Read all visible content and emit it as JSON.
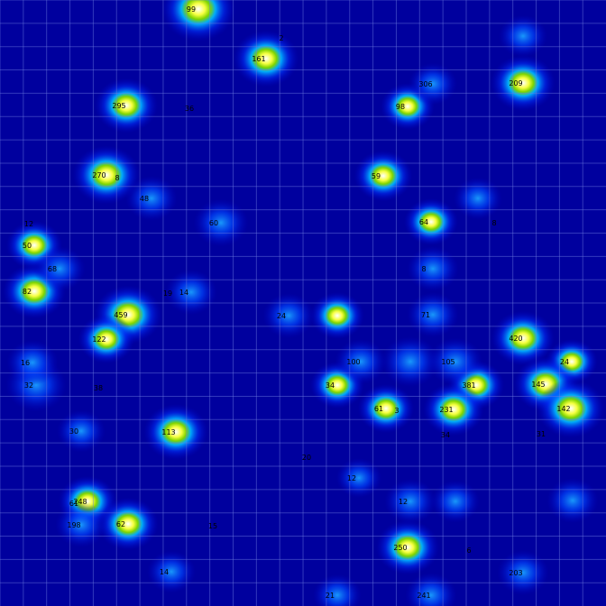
{
  "chart_data": {
    "type": "heatmap",
    "title": "",
    "xlabel": "",
    "ylabel": "",
    "xlim": [
      0,
      672
    ],
    "ylim": [
      0,
      672
    ],
    "grid": true,
    "grid_cell": 25.85,
    "colors": {
      "background": "#00009e",
      "grid": "#6f7fe0",
      "label": "#000000"
    },
    "hotspots": [
      {
        "x": 220,
        "y": 10,
        "label": "99",
        "intensity": 1.0
      },
      {
        "x": 295,
        "y": 65,
        "label": "161",
        "intensity": 0.8
      },
      {
        "x": 580,
        "y": 92,
        "label": "209",
        "intensity": 0.78
      },
      {
        "x": 140,
        "y": 117,
        "label": "295",
        "intensity": 0.75
      },
      {
        "x": 452,
        "y": 118,
        "label": "98",
        "intensity": 0.55
      },
      {
        "x": 118,
        "y": 194,
        "label": "270",
        "intensity": 0.85
      },
      {
        "x": 425,
        "y": 195,
        "label": "59",
        "intensity": 0.65
      },
      {
        "x": 478,
        "y": 246,
        "label": "64",
        "intensity": 0.55
      },
      {
        "x": 38,
        "y": 272,
        "label": "50",
        "intensity": 0.6
      },
      {
        "x": 38,
        "y": 323,
        "label": "82",
        "intensity": 0.75
      },
      {
        "x": 142,
        "y": 349,
        "label": "459",
        "intensity": 0.85
      },
      {
        "x": 374,
        "y": 350,
        "label": "",
        "intensity": 0.55
      },
      {
        "x": 118,
        "y": 376,
        "label": "122",
        "intensity": 0.6
      },
      {
        "x": 580,
        "y": 375,
        "label": "420",
        "intensity": 0.75
      },
      {
        "x": 634,
        "y": 401,
        "label": "24",
        "intensity": 0.5
      },
      {
        "x": 374,
        "y": 427,
        "label": "34",
        "intensity": 0.55
      },
      {
        "x": 528,
        "y": 427,
        "label": "381",
        "intensity": 0.6
      },
      {
        "x": 605,
        "y": 426,
        "label": "145",
        "intensity": 0.75
      },
      {
        "x": 633,
        "y": 453,
        "label": "142",
        "intensity": 0.85
      },
      {
        "x": 428,
        "y": 453,
        "label": "61",
        "intensity": 0.6
      },
      {
        "x": 503,
        "y": 454,
        "label": "231",
        "intensity": 0.7
      },
      {
        "x": 195,
        "y": 479,
        "label": "113",
        "intensity": 0.78
      },
      {
        "x": 97,
        "y": 556,
        "label": "248",
        "intensity": 0.65
      },
      {
        "x": 142,
        "y": 581,
        "label": "62",
        "intensity": 0.7
      },
      {
        "x": 452,
        "y": 607,
        "label": "250",
        "intensity": 0.75
      },
      {
        "x": 40,
        "y": 427,
        "label": "32",
        "intensity": 0.45
      },
      {
        "x": 455,
        "y": 401,
        "label": "",
        "intensity": 0.4
      },
      {
        "x": 400,
        "y": 401,
        "label": "100",
        "intensity": 0.3
      },
      {
        "x": 505,
        "y": 401,
        "label": "105",
        "intensity": 0.35
      },
      {
        "x": 66,
        "y": 298,
        "label": "68",
        "intensity": 0.3
      },
      {
        "x": 168,
        "y": 220,
        "label": "48",
        "intensity": 0.3
      },
      {
        "x": 320,
        "y": 350,
        "label": "24",
        "intensity": 0.3
      },
      {
        "x": 245,
        "y": 247,
        "label": "60",
        "intensity": 0.35
      },
      {
        "x": 212,
        "y": 324,
        "label": "14",
        "intensity": 0.3
      },
      {
        "x": 480,
        "y": 349,
        "label": "71",
        "intensity": 0.3
      },
      {
        "x": 480,
        "y": 93,
        "label": "306",
        "intensity": 0.25
      },
      {
        "x": 580,
        "y": 40,
        "label": "",
        "intensity": 0.25
      },
      {
        "x": 36,
        "y": 402,
        "label": "16",
        "intensity": 0.3
      },
      {
        "x": 90,
        "y": 478,
        "label": "30",
        "intensity": 0.25
      },
      {
        "x": 90,
        "y": 582,
        "label": "198",
        "intensity": 0.3
      },
      {
        "x": 190,
        "y": 634,
        "label": "14",
        "intensity": 0.25
      },
      {
        "x": 374,
        "y": 660,
        "label": "21",
        "intensity": 0.25
      },
      {
        "x": 478,
        "y": 660,
        "label": "241",
        "intensity": 0.3
      },
      {
        "x": 580,
        "y": 635,
        "label": "203",
        "intensity": 0.3
      },
      {
        "x": 635,
        "y": 555,
        "label": "",
        "intensity": 0.3
      },
      {
        "x": 455,
        "y": 556,
        "label": "12",
        "intensity": 0.3
      },
      {
        "x": 505,
        "y": 556,
        "label": "",
        "intensity": 0.25
      },
      {
        "x": 530,
        "y": 220,
        "label": "",
        "intensity": 0.25
      },
      {
        "x": 480,
        "y": 298,
        "label": "",
        "intensity": 0.3
      },
      {
        "x": 398,
        "y": 530,
        "label": "12",
        "intensity": 0.2
      }
    ],
    "extra_labels": [
      {
        "x": 130,
        "y": 197,
        "label": "8"
      },
      {
        "x": 440,
        "y": 455,
        "label": "3"
      },
      {
        "x": 109,
        "y": 430,
        "label": "38"
      },
      {
        "x": 82,
        "y": 558,
        "label": "61"
      },
      {
        "x": 32,
        "y": 248,
        "label": "12"
      },
      {
        "x": 494,
        "y": 482,
        "label": "34"
      },
      {
        "x": 312,
        "y": 42,
        "label": "2"
      },
      {
        "x": 548,
        "y": 247,
        "label": "8"
      },
      {
        "x": 210,
        "y": 120,
        "label": "36"
      },
      {
        "x": 340,
        "y": 507,
        "label": "20"
      },
      {
        "x": 600,
        "y": 481,
        "label": "31"
      },
      {
        "x": 236,
        "y": 583,
        "label": "15"
      },
      {
        "x": 186,
        "y": 325,
        "label": "19"
      },
      {
        "x": 520,
        "y": 610,
        "label": "6"
      },
      {
        "x": 470,
        "y": 298,
        "label": "8"
      }
    ]
  }
}
